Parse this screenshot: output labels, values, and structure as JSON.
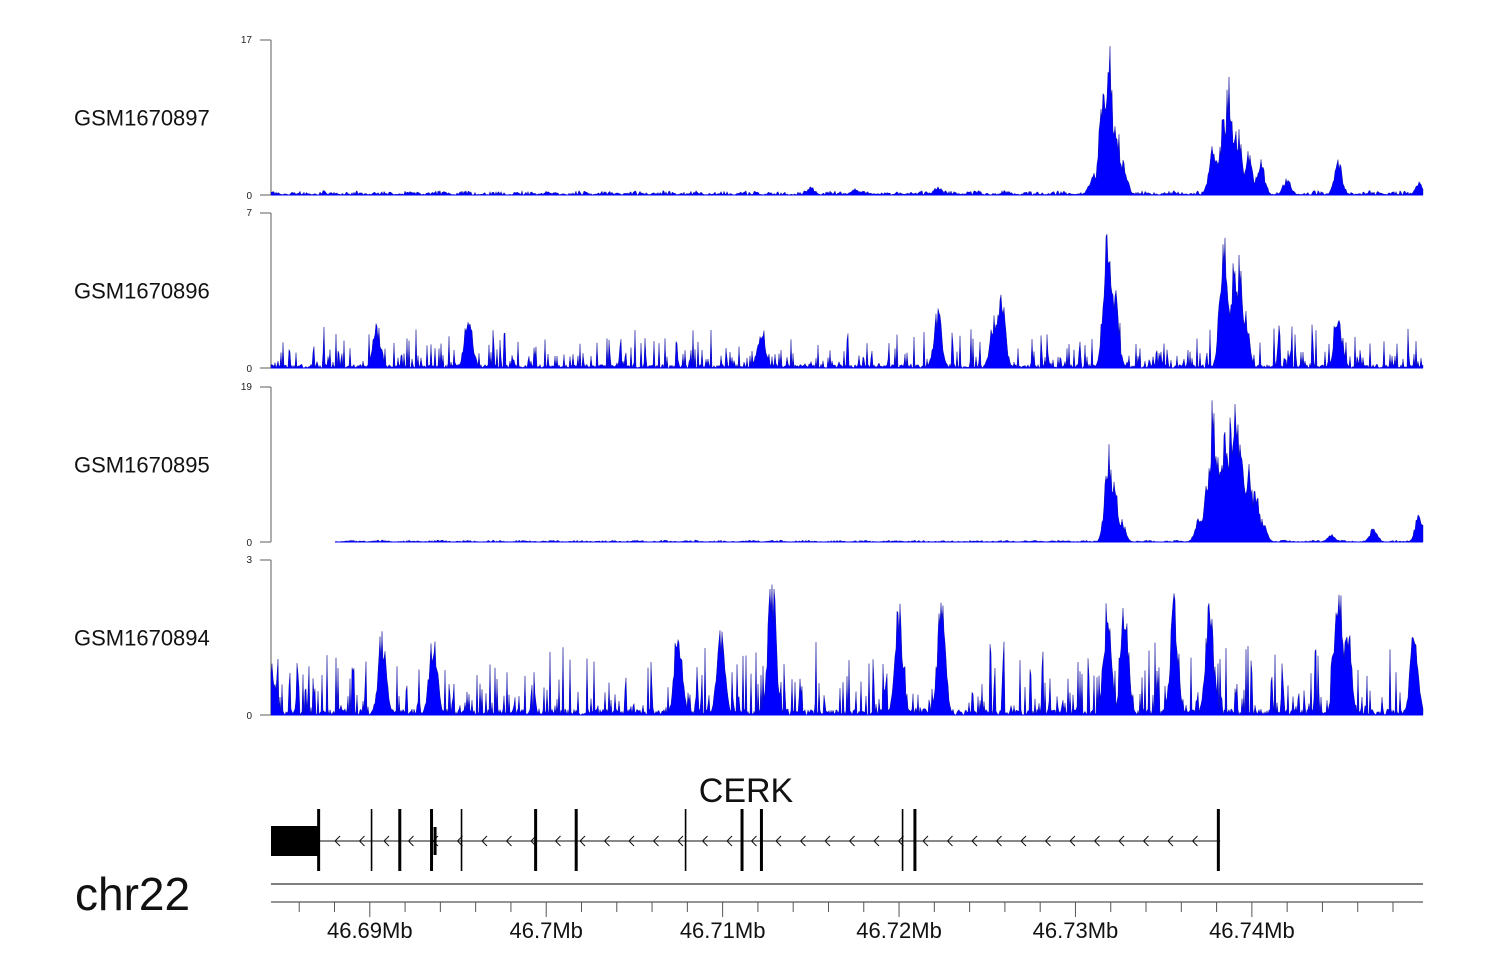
{
  "chart_data": {
    "type": "area",
    "title": "",
    "chromosome": "chr22",
    "xlim_mb": [
      46.6844,
      46.7497
    ],
    "x_ticks": [
      "46.69Mb",
      "46.7Mb",
      "46.71Mb",
      "46.72Mb",
      "46.73Mb",
      "46.74Mb"
    ],
    "x_tick_values": [
      46.69,
      46.7,
      46.71,
      46.72,
      46.73,
      46.74
    ],
    "minor_tick_step_mb": 0.002,
    "fill_color": "#0000ff",
    "series": [
      {
        "name": "GSM1670897",
        "ylim": [
          0,
          17
        ],
        "ymax_label": "17",
        "ymin_label": "0",
        "start_mb": 46.6844,
        "noise": 0.5,
        "peaks": [
          [
            46.6923,
            0.4
          ],
          [
            46.715,
            1.0
          ],
          [
            46.7175,
            0.8
          ],
          [
            46.7222,
            1.0
          ],
          [
            46.731,
            2.5
          ],
          [
            46.7316,
            14
          ],
          [
            46.7319,
            17
          ],
          [
            46.7323,
            9
          ],
          [
            46.7327,
            4
          ],
          [
            46.7378,
            6
          ],
          [
            46.7384,
            9
          ],
          [
            46.7387,
            13
          ],
          [
            46.7392,
            8
          ],
          [
            46.7398,
            5
          ],
          [
            46.7405,
            4
          ],
          [
            46.7449,
            4
          ],
          [
            46.742,
            2
          ],
          [
            46.7495,
            1.5
          ]
        ]
      },
      {
        "name": "GSM1670896",
        "ylim": [
          0,
          7
        ],
        "ymax_label": "7",
        "ymin_label": "0",
        "start_mb": 46.6844,
        "noise": 1.6,
        "peaks": [
          [
            46.6904,
            2.1
          ],
          [
            46.6956,
            2.7
          ],
          [
            46.7122,
            2.1
          ],
          [
            46.7222,
            2.8
          ],
          [
            46.7258,
            3.5
          ],
          [
            46.7254,
            2.5
          ],
          [
            46.7318,
            7
          ],
          [
            46.7322,
            4
          ],
          [
            46.7384,
            7
          ],
          [
            46.739,
            5
          ],
          [
            46.7393,
            5.5
          ],
          [
            46.7396,
            3
          ],
          [
            46.7449,
            2.7
          ]
        ]
      },
      {
        "name": "GSM1670895",
        "ylim": [
          0,
          19
        ],
        "ymax_label": "19",
        "ymin_label": "0",
        "start_mb": 46.688,
        "noise": 0.25,
        "peaks": [
          [
            46.7319,
            12.5
          ],
          [
            46.7322,
            8
          ],
          [
            46.7326,
            3
          ],
          [
            46.737,
            3
          ],
          [
            46.7375,
            9
          ],
          [
            46.7378,
            18
          ],
          [
            46.7382,
            12
          ],
          [
            46.7385,
            15
          ],
          [
            46.7388,
            16
          ],
          [
            46.7391,
            19
          ],
          [
            46.7394,
            14
          ],
          [
            46.7398,
            10
          ],
          [
            46.7402,
            7
          ],
          [
            46.7406,
            3
          ],
          [
            46.7445,
            1
          ],
          [
            46.7469,
            1.8
          ],
          [
            46.7495,
            4
          ]
        ]
      },
      {
        "name": "GSM1670894",
        "ylim": [
          0,
          3
        ],
        "ymax_label": "3",
        "ymin_label": "0",
        "start_mb": 46.6844,
        "noise": 1.2,
        "peaks": [
          [
            46.6844,
            1.2
          ],
          [
            46.6907,
            1.8
          ],
          [
            46.6936,
            1.7
          ],
          [
            46.7075,
            1.8
          ],
          [
            46.7099,
            1.8
          ],
          [
            46.7128,
            3
          ],
          [
            46.72,
            2.4
          ],
          [
            46.7224,
            2.4
          ],
          [
            46.7318,
            2.4
          ],
          [
            46.7328,
            2.4
          ],
          [
            46.7356,
            2.4
          ],
          [
            46.7376,
            2.4
          ],
          [
            46.7449,
            3
          ],
          [
            46.7454,
            2
          ],
          [
            46.7492,
            1.8
          ]
        ]
      }
    ],
    "gene": {
      "name": "CERK",
      "strand": "-",
      "start_mb": 46.6844,
      "end_mb": 46.7382,
      "utr_block_mb": [
        46.6844,
        46.6871
      ],
      "exons_mb": [
        46.6871,
        46.6901,
        46.6917,
        46.6935,
        46.6952,
        46.6994,
        46.7017,
        46.7079,
        46.7111,
        46.7122,
        46.7202,
        46.7209,
        46.7381
      ],
      "short_exon_mb": 46.6937
    }
  }
}
